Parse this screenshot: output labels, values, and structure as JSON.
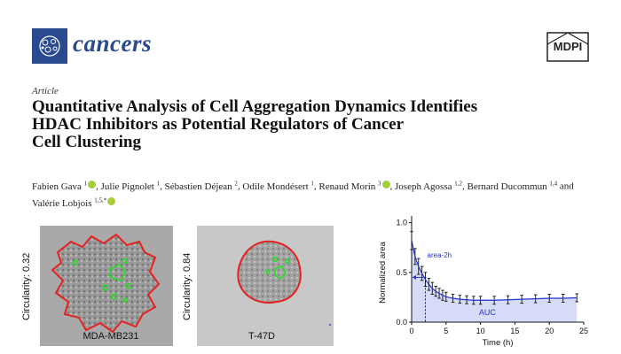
{
  "journal": {
    "name": "cancers",
    "publisher": "MDPI"
  },
  "article": {
    "type": "Article",
    "title_lines": [
      "Quantitative Analysis of Cell Aggregation Dynamics Identifies",
      "HDAC Inhibitors as Potential Regulators of Cancer",
      "Cell Clustering"
    ],
    "authors": [
      {
        "name": "Fabien Gava",
        "sup": "1",
        "orcid": true,
        "sep": ", "
      },
      {
        "name": "Julie Pignolet",
        "sup": "1",
        "orcid": false,
        "sep": ", "
      },
      {
        "name": "Sébastien Déjean",
        "sup": "2",
        "orcid": false,
        "sep": ", "
      },
      {
        "name": "Odile Mondésert",
        "sup": "1",
        "orcid": false,
        "sep": ", "
      },
      {
        "name": "Renaud Morin",
        "sup": "3",
        "orcid": true,
        "sep": ", "
      },
      {
        "name": "Joseph Agossa",
        "sup": "1,2",
        "orcid": false,
        "sep": ", "
      },
      {
        "name": "Bernard Ducommun",
        "sup": "1,4",
        "orcid": false,
        "sep": " and "
      },
      {
        "name": "Valérie Lobjois",
        "sup": "1,5,*",
        "orcid": true,
        "sep": ""
      }
    ]
  },
  "figure": {
    "micrographs": [
      {
        "circularity_label": "Circularity: 0.32",
        "cell_line": "MDA-MB231"
      },
      {
        "circularity_label": "Circularity: 0.84",
        "cell_line": "T-47D"
      }
    ],
    "chart_data": {
      "type": "line",
      "xlabel": "Time (h)",
      "ylabel": "Normalized area",
      "xlim": [
        0,
        25
      ],
      "ylim": [
        0,
        1.05
      ],
      "xticks": [
        0,
        5,
        10,
        15,
        20,
        25
      ],
      "yticks": [
        0.0,
        0.5,
        1.0
      ],
      "ytick_labels": [
        "0.0",
        "0.5",
        "1.0"
      ],
      "x": [
        0,
        0.5,
        1,
        1.5,
        2,
        2.5,
        3,
        3.5,
        4,
        4.5,
        5,
        6,
        7,
        8,
        9,
        10,
        12,
        14,
        16,
        18,
        20,
        22,
        24
      ],
      "y": [
        0.82,
        0.66,
        0.56,
        0.49,
        0.43,
        0.38,
        0.34,
        0.31,
        0.29,
        0.27,
        0.255,
        0.24,
        0.23,
        0.225,
        0.22,
        0.22,
        0.22,
        0.225,
        0.23,
        0.235,
        0.24,
        0.24,
        0.245
      ],
      "error": [
        0.09,
        0.08,
        0.08,
        0.07,
        0.07,
        0.06,
        0.06,
        0.05,
        0.05,
        0.05,
        0.045,
        0.04,
        0.04,
        0.04,
        0.04,
        0.04,
        0.04,
        0.04,
        0.04,
        0.04,
        0.04,
        0.04,
        0.04
      ],
      "annotations": [
        {
          "text": "area-2h",
          "x": 2,
          "y": 0.45
        },
        {
          "text": "AUC",
          "x": 11,
          "y": 0.07
        }
      ],
      "fill_color": "#d6dcf8",
      "line_color": "#2233cc"
    }
  }
}
